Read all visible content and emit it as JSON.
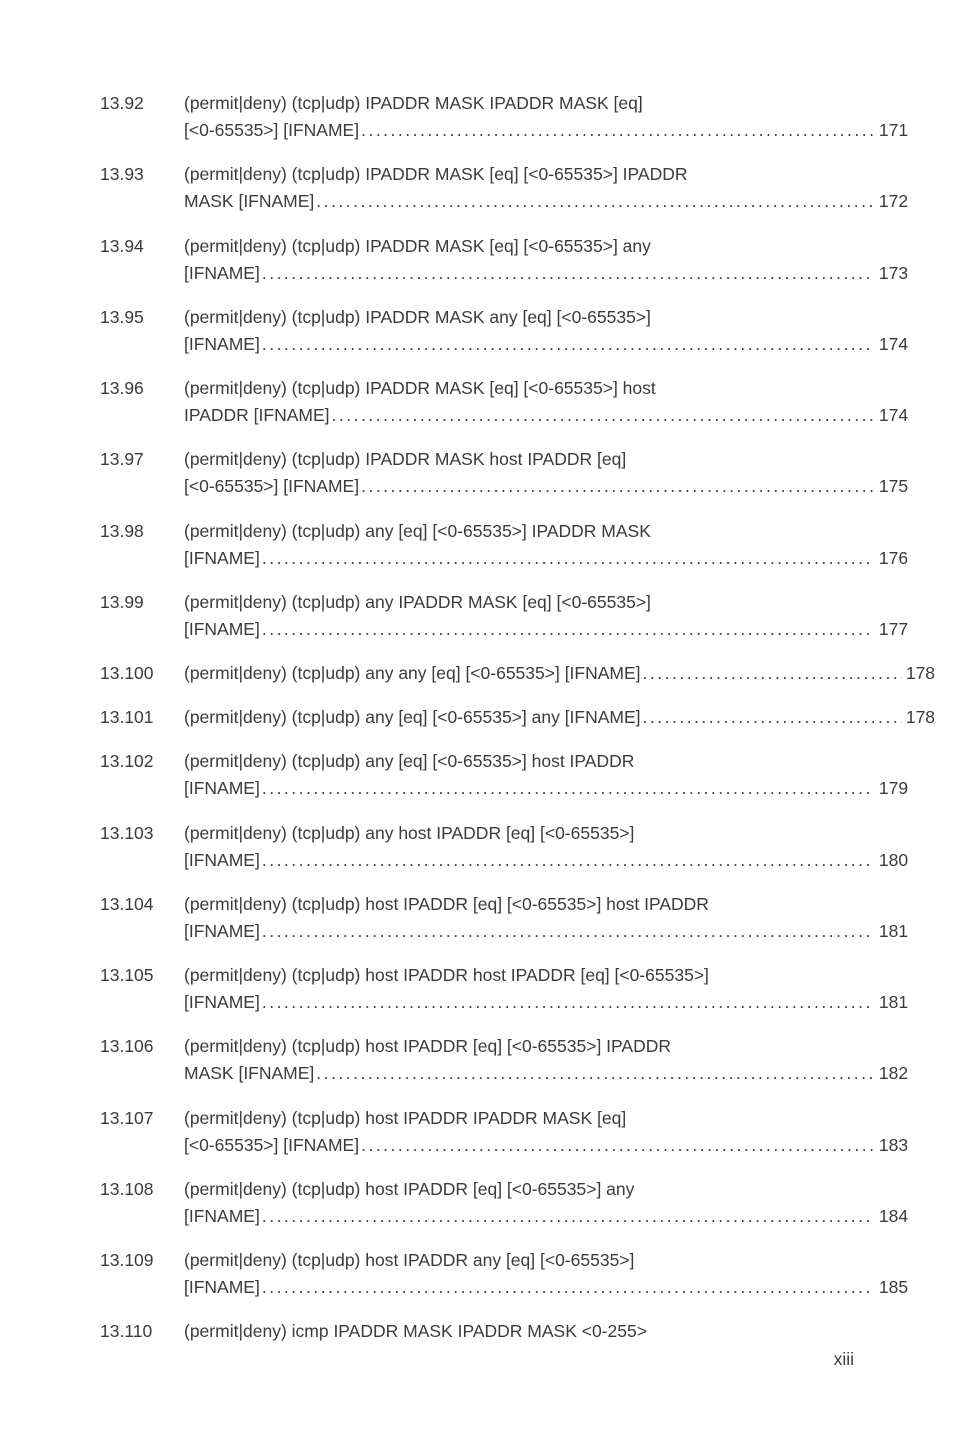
{
  "entries": [
    {
      "num": "13.92",
      "title1": "(permit|deny) (tcp|udp) IPADDR MASK IPADDR MASK [eq]",
      "title2": "[<0-65535>] [IFNAME]",
      "page": "171"
    },
    {
      "num": "13.93",
      "title1": "(permit|deny) (tcp|udp) IPADDR MASK [eq] [<0-65535>] IPADDR",
      "title2": "MASK [IFNAME]",
      "page": "172"
    },
    {
      "num": "13.94",
      "title1": "(permit|deny) (tcp|udp) IPADDR MASK [eq] [<0-65535>] any",
      "title2": "[IFNAME]",
      "page": "173"
    },
    {
      "num": "13.95",
      "title1": "(permit|deny) (tcp|udp) IPADDR MASK any [eq] [<0-65535>]",
      "title2": "[IFNAME]",
      "page": "174"
    },
    {
      "num": "13.96",
      "title1": "(permit|deny) (tcp|udp) IPADDR MASK [eq] [<0-65535>] host",
      "title2": "IPADDR [IFNAME]",
      "page": "174"
    },
    {
      "num": "13.97",
      "title1": "(permit|deny) (tcp|udp) IPADDR MASK host IPADDR [eq]",
      "title2": "[<0-65535>] [IFNAME]",
      "page": "175"
    },
    {
      "num": "13.98",
      "title1": "(permit|deny) (tcp|udp) any [eq] [<0-65535>] IPADDR MASK",
      "title2": "[IFNAME]",
      "page": "176"
    },
    {
      "num": "13.99",
      "title1": "(permit|deny) (tcp|udp) any IPADDR MASK [eq] [<0-65535>]",
      "title2": "[IFNAME]",
      "page": "177"
    },
    {
      "num": "13.100",
      "title1": "(permit|deny) (tcp|udp) any any [eq] [<0-65535>] [IFNAME]",
      "title2": null,
      "page": "178"
    },
    {
      "num": "13.101",
      "title1": "(permit|deny) (tcp|udp) any [eq] [<0-65535>] any [IFNAME]",
      "title2": null,
      "page": "178"
    },
    {
      "num": "13.102",
      "title1": "(permit|deny) (tcp|udp) any [eq] [<0-65535>] host IPADDR",
      "title2": "[IFNAME]",
      "page": "179"
    },
    {
      "num": "13.103",
      "title1": "(permit|deny) (tcp|udp) any host IPADDR [eq] [<0-65535>]",
      "title2": "[IFNAME]",
      "page": "180"
    },
    {
      "num": "13.104",
      "title1": "(permit|deny) (tcp|udp) host IPADDR [eq] [<0-65535>] host IPADDR",
      "title2": "[IFNAME]",
      "page": "181"
    },
    {
      "num": "13.105",
      "title1": "(permit|deny) (tcp|udp) host IPADDR host IPADDR [eq] [<0-65535>]",
      "title2": "[IFNAME]",
      "page": "181"
    },
    {
      "num": "13.106",
      "title1": "(permit|deny) (tcp|udp) host IPADDR [eq] [<0-65535>] IPADDR",
      "title2": "MASK [IFNAME]",
      "page": "182"
    },
    {
      "num": "13.107",
      "title1": "(permit|deny) (tcp|udp) host IPADDR IPADDR MASK [eq]",
      "title2": "[<0-65535>] [IFNAME]",
      "page": "183"
    },
    {
      "num": "13.108",
      "title1": "(permit|deny) (tcp|udp) host IPADDR [eq] [<0-65535>] any",
      "title2": "[IFNAME]",
      "page": "184"
    },
    {
      "num": "13.109",
      "title1": "(permit|deny) (tcp|udp) host IPADDR any [eq] [<0-65535>]",
      "title2": "[IFNAME]",
      "page": "185"
    },
    {
      "num": "13.110",
      "title1": "(permit|deny) icmp IPADDR MASK IPADDR MASK <0-255>",
      "title2": null,
      "page": null
    }
  ],
  "footer": "xiii",
  "leader_dots": "...................................................................................",
  "colors": {
    "text": "#3b3b3b",
    "bg": "#ffffff"
  },
  "font_size_pt": 13
}
